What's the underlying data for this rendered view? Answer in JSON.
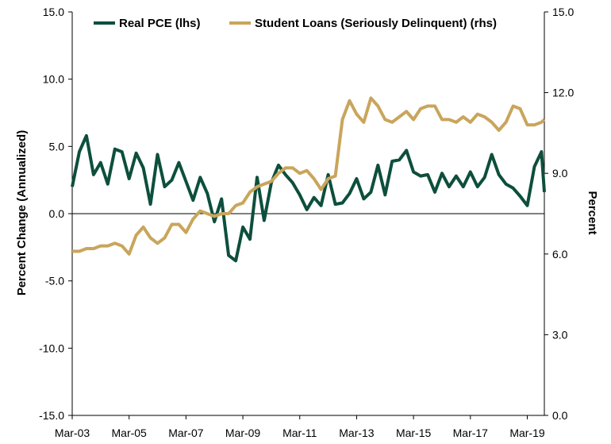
{
  "chart_data": {
    "type": "line",
    "title": "",
    "xlabel": "",
    "ylabel_left": "Percent Change (Annualized)",
    "ylabel_right": "Percent",
    "x_range": [
      2003.0,
      2019.6
    ],
    "x_ticks": [
      {
        "label": "Mar-03",
        "x": 2003.0
      },
      {
        "label": "Mar-05",
        "x": 2005.0
      },
      {
        "label": "Mar-07",
        "x": 2007.0
      },
      {
        "label": "Mar-09",
        "x": 2009.0
      },
      {
        "label": "Mar-11",
        "x": 2011.0
      },
      {
        "label": "Mar-13",
        "x": 2013.0
      },
      {
        "label": "Mar-15",
        "x": 2015.0
      },
      {
        "label": "Mar-17",
        "x": 2017.0
      },
      {
        "label": "Mar-19",
        "x": 2019.0
      }
    ],
    "ylim_left": [
      -15,
      15
    ],
    "yticks_left": [
      "-15.0",
      "-10.0",
      "-5.0",
      "0.0",
      "5.0",
      "10.0",
      "15.0"
    ],
    "ylim_right": [
      0,
      15
    ],
    "yticks_right": [
      "0.0",
      "3.0",
      "6.0",
      "9.0",
      "12.0",
      "15.0"
    ],
    "grid": false,
    "zero_line": true,
    "legend": {
      "placement": "top"
    },
    "series": [
      {
        "name": "Real PCE (lhs)",
        "axis": "left",
        "color": "#0d4f3c",
        "points": [
          [
            2003.0,
            2.0
          ],
          [
            2003.25,
            4.6
          ],
          [
            2003.5,
            5.8
          ],
          [
            2003.75,
            2.9
          ],
          [
            2004.0,
            3.8
          ],
          [
            2004.25,
            2.2
          ],
          [
            2004.5,
            4.8
          ],
          [
            2004.75,
            4.6
          ],
          [
            2005.0,
            2.6
          ],
          [
            2005.25,
            4.5
          ],
          [
            2005.5,
            3.4
          ],
          [
            2005.75,
            0.7
          ],
          [
            2006.0,
            4.4
          ],
          [
            2006.25,
            2.0
          ],
          [
            2006.5,
            2.5
          ],
          [
            2006.75,
            3.8
          ],
          [
            2007.0,
            2.4
          ],
          [
            2007.25,
            1.0
          ],
          [
            2007.5,
            2.7
          ],
          [
            2007.75,
            1.5
          ],
          [
            2008.0,
            -0.6
          ],
          [
            2008.25,
            1.1
          ],
          [
            2008.5,
            -3.1
          ],
          [
            2008.75,
            -3.5
          ],
          [
            2009.0,
            -1.0
          ],
          [
            2009.25,
            -1.9
          ],
          [
            2009.5,
            2.7
          ],
          [
            2009.75,
            -0.5
          ],
          [
            2010.0,
            2.3
          ],
          [
            2010.25,
            3.6
          ],
          [
            2010.5,
            2.9
          ],
          [
            2010.75,
            2.3
          ],
          [
            2011.0,
            1.4
          ],
          [
            2011.25,
            0.3
          ],
          [
            2011.5,
            1.2
          ],
          [
            2011.75,
            0.6
          ],
          [
            2012.0,
            2.9
          ],
          [
            2012.25,
            0.7
          ],
          [
            2012.5,
            0.8
          ],
          [
            2012.75,
            1.5
          ],
          [
            2013.0,
            2.6
          ],
          [
            2013.25,
            1.1
          ],
          [
            2013.5,
            1.6
          ],
          [
            2013.75,
            3.6
          ],
          [
            2014.0,
            1.4
          ],
          [
            2014.25,
            3.9
          ],
          [
            2014.5,
            4.0
          ],
          [
            2014.75,
            4.7
          ],
          [
            2015.0,
            3.1
          ],
          [
            2015.25,
            2.8
          ],
          [
            2015.5,
            2.9
          ],
          [
            2015.75,
            1.6
          ],
          [
            2016.0,
            3.0
          ],
          [
            2016.25,
            2.0
          ],
          [
            2016.5,
            2.8
          ],
          [
            2016.75,
            2.0
          ],
          [
            2017.0,
            3.1
          ],
          [
            2017.25,
            2.0
          ],
          [
            2017.5,
            2.7
          ],
          [
            2017.75,
            4.4
          ],
          [
            2018.0,
            2.9
          ],
          [
            2018.25,
            2.2
          ],
          [
            2018.5,
            1.9
          ],
          [
            2018.75,
            1.3
          ],
          [
            2019.0,
            0.6
          ],
          [
            2019.25,
            3.5
          ],
          [
            2019.5,
            4.6
          ],
          [
            2019.6,
            1.6
          ]
        ]
      },
      {
        "name": "Student Loans (Seriously Delinquent) (rhs)",
        "axis": "right",
        "color": "#c9a55c",
        "points": [
          [
            2003.0,
            6.1
          ],
          [
            2003.25,
            6.1
          ],
          [
            2003.5,
            6.2
          ],
          [
            2003.75,
            6.2
          ],
          [
            2004.0,
            6.3
          ],
          [
            2004.25,
            6.3
          ],
          [
            2004.5,
            6.4
          ],
          [
            2004.75,
            6.3
          ],
          [
            2005.0,
            6.0
          ],
          [
            2005.25,
            6.7
          ],
          [
            2005.5,
            7.0
          ],
          [
            2005.75,
            6.6
          ],
          [
            2006.0,
            6.4
          ],
          [
            2006.25,
            6.6
          ],
          [
            2006.5,
            7.1
          ],
          [
            2006.75,
            7.1
          ],
          [
            2007.0,
            6.8
          ],
          [
            2007.25,
            7.3
          ],
          [
            2007.5,
            7.6
          ],
          [
            2007.75,
            7.5
          ],
          [
            2008.0,
            7.4
          ],
          [
            2008.25,
            7.5
          ],
          [
            2008.5,
            7.5
          ],
          [
            2008.75,
            7.8
          ],
          [
            2009.0,
            7.9
          ],
          [
            2009.25,
            8.3
          ],
          [
            2009.5,
            8.5
          ],
          [
            2009.75,
            8.6
          ],
          [
            2010.0,
            8.7
          ],
          [
            2010.25,
            9.0
          ],
          [
            2010.5,
            9.2
          ],
          [
            2010.75,
            9.2
          ],
          [
            2011.0,
            9.0
          ],
          [
            2011.25,
            9.1
          ],
          [
            2011.5,
            8.8
          ],
          [
            2011.75,
            8.4
          ],
          [
            2012.0,
            8.8
          ],
          [
            2012.25,
            8.9
          ],
          [
            2012.5,
            11.0
          ],
          [
            2012.75,
            11.7
          ],
          [
            2013.0,
            11.2
          ],
          [
            2013.25,
            10.9
          ],
          [
            2013.5,
            11.8
          ],
          [
            2013.75,
            11.5
          ],
          [
            2014.0,
            11.0
          ],
          [
            2014.25,
            10.9
          ],
          [
            2014.5,
            11.1
          ],
          [
            2014.75,
            11.3
          ],
          [
            2015.0,
            11.0
          ],
          [
            2015.25,
            11.4
          ],
          [
            2015.5,
            11.5
          ],
          [
            2015.75,
            11.5
          ],
          [
            2016.0,
            11.0
          ],
          [
            2016.25,
            11.0
          ],
          [
            2016.5,
            10.9
          ],
          [
            2016.75,
            11.1
          ],
          [
            2017.0,
            10.9
          ],
          [
            2017.25,
            11.2
          ],
          [
            2017.5,
            11.1
          ],
          [
            2017.75,
            10.9
          ],
          [
            2018.0,
            10.6
          ],
          [
            2018.25,
            10.9
          ],
          [
            2018.5,
            11.5
          ],
          [
            2018.75,
            11.4
          ],
          [
            2019.0,
            10.8
          ],
          [
            2019.25,
            10.8
          ],
          [
            2019.5,
            10.9
          ],
          [
            2019.6,
            11.0
          ]
        ]
      }
    ]
  }
}
